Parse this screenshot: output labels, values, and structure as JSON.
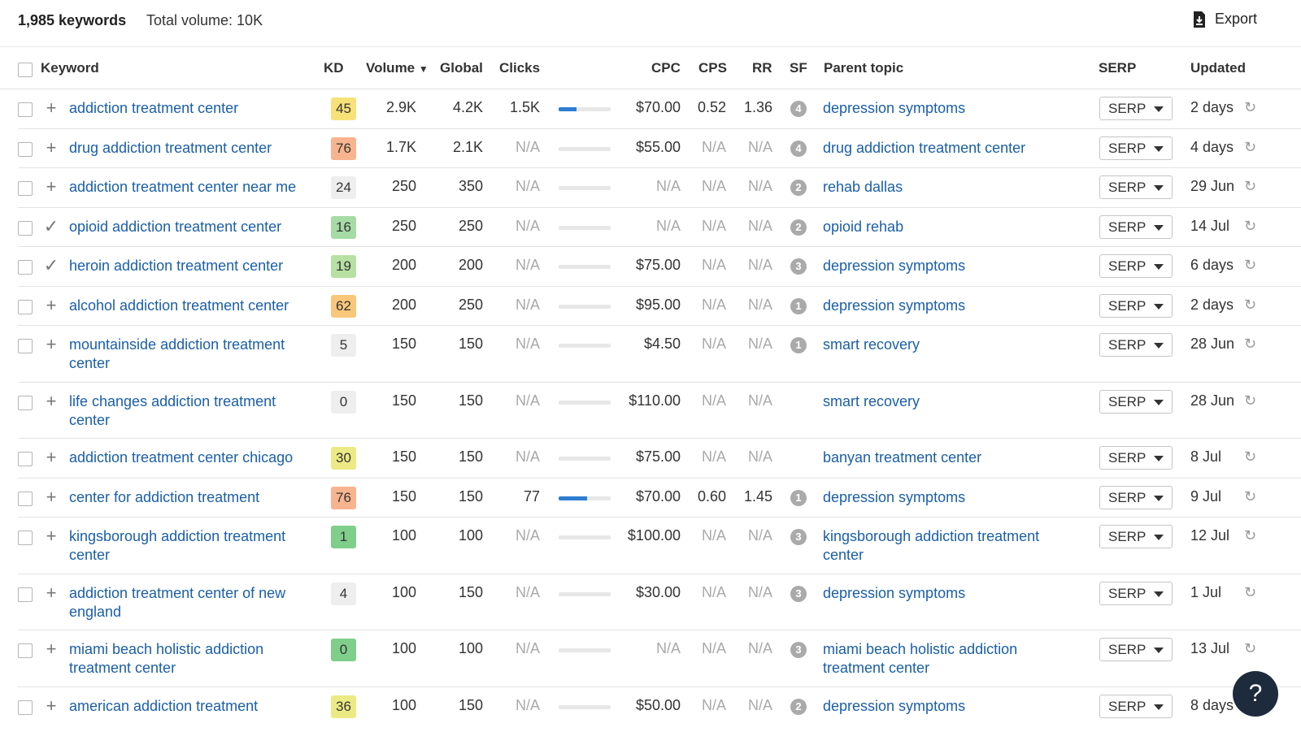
{
  "summary": {
    "keywords_count": "1,985 keywords",
    "total_volume": "Total volume: 10K",
    "export_label": "Export"
  },
  "columns": {
    "keyword": "Keyword",
    "kd": "KD",
    "volume": "Volume",
    "global": "Global",
    "clicks": "Clicks",
    "cpc": "CPC",
    "cps": "CPS",
    "rr": "RR",
    "sf": "SF",
    "parent_topic": "Parent topic",
    "serp": "SERP",
    "updated": "Updated"
  },
  "serp_button_label": "SERP",
  "help_label": "?",
  "colors": {
    "link": "#1a5fa8",
    "bar": "#2d7dd2"
  },
  "rows": [
    {
      "keyword": "addiction treatment center",
      "action": "plus",
      "kd": "45",
      "kd_color": "#f7e27a",
      "volume": "2.9K",
      "global": "4.2K",
      "clicks": "1.5K",
      "clicks_bar": 0.35,
      "cpc": "$70.00",
      "cps": "0.52",
      "rr": "1.36",
      "sf": "4",
      "parent": "depression symptoms",
      "updated": "2 days"
    },
    {
      "keyword": "drug addiction treatment center",
      "action": "plus",
      "kd": "76",
      "kd_color": "#f8b48e",
      "volume": "1.7K",
      "global": "2.1K",
      "clicks": "N/A",
      "clicks_bar": 0,
      "cpc": "$55.00",
      "cps": "N/A",
      "rr": "N/A",
      "sf": "4",
      "parent": "drug addiction treatment center",
      "updated": "4 days"
    },
    {
      "keyword": "addiction treatment center near me",
      "action": "plus",
      "kd": "24",
      "kd_color": "#eeeeee",
      "volume": "250",
      "global": "350",
      "clicks": "N/A",
      "clicks_bar": 0,
      "cpc": "N/A",
      "cps": "N/A",
      "rr": "N/A",
      "sf": "2",
      "parent": "rehab dallas",
      "updated": "29 Jun"
    },
    {
      "keyword": "opioid addiction treatment center",
      "action": "check",
      "kd": "16",
      "kd_color": "#a6dba5",
      "volume": "250",
      "global": "250",
      "clicks": "N/A",
      "clicks_bar": 0,
      "cpc": "N/A",
      "cps": "N/A",
      "rr": "N/A",
      "sf": "2",
      "parent": "opioid rehab",
      "updated": "14 Jul"
    },
    {
      "keyword": "heroin addiction treatment center",
      "action": "check",
      "kd": "19",
      "kd_color": "#b7e0a3",
      "volume": "200",
      "global": "200",
      "clicks": "N/A",
      "clicks_bar": 0,
      "cpc": "$75.00",
      "cps": "N/A",
      "rr": "N/A",
      "sf": "3",
      "parent": "depression symptoms",
      "updated": "6 days"
    },
    {
      "keyword": "alcohol addiction treatment center",
      "action": "plus",
      "kd": "62",
      "kd_color": "#f9c77b",
      "volume": "200",
      "global": "250",
      "clicks": "N/A",
      "clicks_bar": 0,
      "cpc": "$95.00",
      "cps": "N/A",
      "rr": "N/A",
      "sf": "1",
      "parent": "depression symptoms",
      "updated": "2 days"
    },
    {
      "keyword": "mountainside addiction treatment center",
      "action": "plus",
      "kd": "5",
      "kd_color": "#eeeeee",
      "volume": "150",
      "global": "150",
      "clicks": "N/A",
      "clicks_bar": 0,
      "cpc": "$4.50",
      "cps": "N/A",
      "rr": "N/A",
      "sf": "1",
      "parent": "smart recovery",
      "updated": "28 Jun"
    },
    {
      "keyword": "life changes addiction treatment center",
      "action": "plus",
      "kd": "0",
      "kd_color": "#eeeeee",
      "volume": "150",
      "global": "150",
      "clicks": "N/A",
      "clicks_bar": 0,
      "cpc": "$110.00",
      "cps": "N/A",
      "rr": "N/A",
      "sf": "",
      "parent": "smart recovery",
      "updated": "28 Jun"
    },
    {
      "keyword": "addiction treatment center chicago",
      "action": "plus",
      "kd": "30",
      "kd_color": "#ecea84",
      "volume": "150",
      "global": "150",
      "clicks": "N/A",
      "clicks_bar": 0,
      "cpc": "$75.00",
      "cps": "N/A",
      "rr": "N/A",
      "sf": "",
      "parent": "banyan treatment center",
      "updated": "8 Jul"
    },
    {
      "keyword": "center for addiction treatment",
      "action": "plus",
      "kd": "76",
      "kd_color": "#f8b48e",
      "volume": "150",
      "global": "150",
      "clicks": "77",
      "clicks_bar": 0.55,
      "cpc": "$70.00",
      "cps": "0.60",
      "rr": "1.45",
      "sf": "1",
      "parent": "depression symptoms",
      "updated": "9 Jul"
    },
    {
      "keyword": "kingsborough addiction treatment center",
      "action": "plus",
      "kd": "1",
      "kd_color": "#7fcf8b",
      "volume": "100",
      "global": "100",
      "clicks": "N/A",
      "clicks_bar": 0,
      "cpc": "$100.00",
      "cps": "N/A",
      "rr": "N/A",
      "sf": "3",
      "parent": "kingsborough addiction treatment center",
      "updated": "12 Jul"
    },
    {
      "keyword": "addiction treatment center of new england",
      "action": "plus",
      "kd": "4",
      "kd_color": "#eeeeee",
      "volume": "100",
      "global": "150",
      "clicks": "N/A",
      "clicks_bar": 0,
      "cpc": "$30.00",
      "cps": "N/A",
      "rr": "N/A",
      "sf": "3",
      "parent": "depression symptoms",
      "updated": "1 Jul"
    },
    {
      "keyword": "miami beach holistic addiction treatment center",
      "action": "plus",
      "kd": "0",
      "kd_color": "#7fcf8b",
      "volume": "100",
      "global": "100",
      "clicks": "N/A",
      "clicks_bar": 0,
      "cpc": "N/A",
      "cps": "N/A",
      "rr": "N/A",
      "sf": "3",
      "parent": "miami beach holistic addiction treatment center",
      "updated": "13 Jul"
    },
    {
      "keyword": "american addiction treatment",
      "action": "plus",
      "kd": "36",
      "kd_color": "#ecea84",
      "volume": "100",
      "global": "150",
      "clicks": "N/A",
      "clicks_bar": 0,
      "cpc": "$50.00",
      "cps": "N/A",
      "rr": "N/A",
      "sf": "2",
      "parent": "depression symptoms",
      "updated": "8 days"
    }
  ]
}
